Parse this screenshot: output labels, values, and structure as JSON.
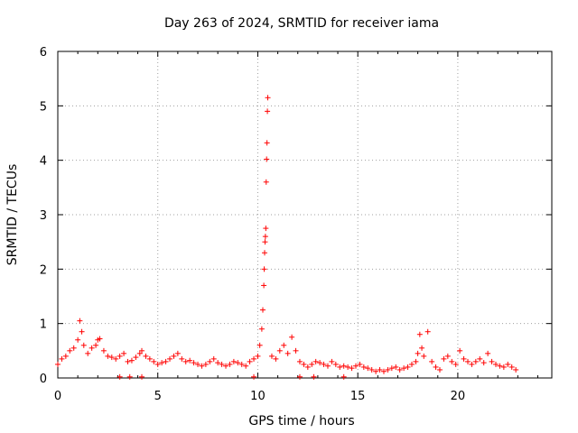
{
  "chart_data": {
    "type": "scatter",
    "title": "Day 263 of 2024, SRMTID for receiver iama",
    "xlabel": "GPS time / hours",
    "ylabel": "SRMTID / TECUs",
    "xlim": [
      0,
      24.7
    ],
    "ylim": [
      0,
      6
    ],
    "xticks": [
      "0",
      "5",
      "10",
      "15",
      "20"
    ],
    "yticks": [
      "0",
      "1",
      "2",
      "3",
      "4",
      "5",
      "6"
    ],
    "grid": true,
    "marker": "+",
    "series_color": "#ff0000",
    "series": [
      {
        "name": "SRMTID",
        "x": [
          0.0,
          0.2,
          0.4,
          0.6,
          0.8,
          1.0,
          1.1,
          1.2,
          1.3,
          1.5,
          1.7,
          1.9,
          2.0,
          2.1,
          2.3,
          2.5,
          2.7,
          2.9,
          3.1,
          3.3,
          3.5,
          3.7,
          3.9,
          4.1,
          4.2,
          4.4,
          4.6,
          4.8,
          5.0,
          5.2,
          5.4,
          5.6,
          5.8,
          6.0,
          6.2,
          6.4,
          6.6,
          6.8,
          7.0,
          7.2,
          7.4,
          7.6,
          7.8,
          8.0,
          8.2,
          8.4,
          8.6,
          8.8,
          9.0,
          9.2,
          9.4,
          9.6,
          9.8,
          10.0,
          10.1,
          10.2,
          10.25,
          10.3,
          10.32,
          10.34,
          10.36,
          10.38,
          10.4,
          10.42,
          10.44,
          10.46,
          10.48,
          10.5,
          10.7,
          10.9,
          11.1,
          11.3,
          11.5,
          11.7,
          11.9,
          12.1,
          12.3,
          12.5,
          12.7,
          12.9,
          13.1,
          13.3,
          13.5,
          13.7,
          13.9,
          14.1,
          14.3,
          14.5,
          14.7,
          14.9,
          15.1,
          15.3,
          15.5,
          15.7,
          15.9,
          16.1,
          16.3,
          16.5,
          16.7,
          16.9,
          17.1,
          17.3,
          17.5,
          17.7,
          17.9,
          18.0,
          18.1,
          18.2,
          18.3,
          18.5,
          18.7,
          18.9,
          19.1,
          19.3,
          19.5,
          19.7,
          19.9,
          20.1,
          20.3,
          20.5,
          20.7,
          20.9,
          21.1,
          21.3,
          21.5,
          21.7,
          21.9,
          22.1,
          22.3,
          22.5,
          22.7,
          22.9,
          3.1,
          3.6,
          4.2,
          9.8,
          12.1,
          12.8,
          14.3
        ],
        "y": [
          0.25,
          0.35,
          0.4,
          0.5,
          0.55,
          0.7,
          1.05,
          0.85,
          0.6,
          0.45,
          0.55,
          0.6,
          0.7,
          0.72,
          0.5,
          0.4,
          0.38,
          0.35,
          0.4,
          0.45,
          0.3,
          0.32,
          0.38,
          0.45,
          0.5,
          0.4,
          0.35,
          0.3,
          0.25,
          0.28,
          0.3,
          0.35,
          0.4,
          0.45,
          0.35,
          0.3,
          0.32,
          0.28,
          0.25,
          0.22,
          0.25,
          0.3,
          0.35,
          0.28,
          0.25,
          0.22,
          0.25,
          0.3,
          0.28,
          0.25,
          0.22,
          0.3,
          0.35,
          0.4,
          0.6,
          0.9,
          1.25,
          1.7,
          2.0,
          2.3,
          2.5,
          2.6,
          2.75,
          3.6,
          4.02,
          4.32,
          4.9,
          5.15,
          0.4,
          0.35,
          0.5,
          0.6,
          0.45,
          0.75,
          0.5,
          0.3,
          0.25,
          0.2,
          0.25,
          0.3,
          0.28,
          0.25,
          0.22,
          0.3,
          0.25,
          0.2,
          0.22,
          0.2,
          0.18,
          0.22,
          0.25,
          0.2,
          0.18,
          0.15,
          0.12,
          0.15,
          0.12,
          0.15,
          0.18,
          0.2,
          0.15,
          0.18,
          0.2,
          0.25,
          0.3,
          0.45,
          0.8,
          0.55,
          0.4,
          0.85,
          0.3,
          0.2,
          0.15,
          0.35,
          0.4,
          0.3,
          0.25,
          0.5,
          0.35,
          0.3,
          0.25,
          0.3,
          0.35,
          0.28,
          0.45,
          0.3,
          0.25,
          0.22,
          0.2,
          0.25,
          0.2,
          0.15,
          0.02,
          0.02,
          0.02,
          0.02,
          0.02,
          0.02,
          0.02
        ]
      }
    ]
  }
}
